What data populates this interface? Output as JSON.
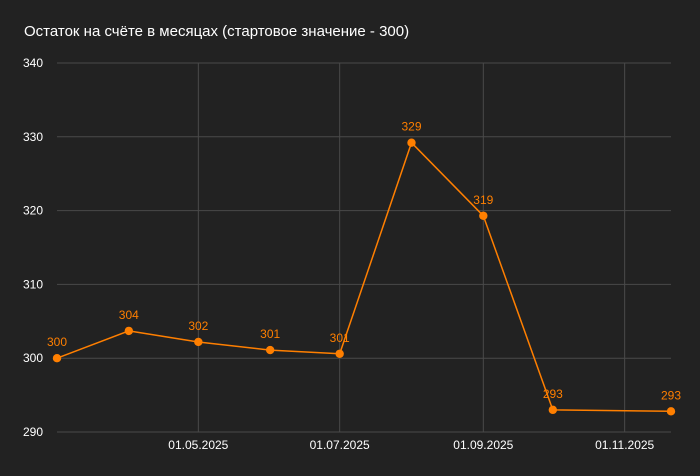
{
  "colors": {
    "background": "#222222",
    "grid": "#4a4a4a",
    "series": "#ff7f00",
    "text": "#ffffff"
  },
  "chart_data": {
    "type": "line",
    "title": "Остаток на счёте в месяцах (стартовое значение - 300)",
    "xlabel": "",
    "ylabel": "",
    "grid": true,
    "legend": "none",
    "xlim": [
      "2025-03-01",
      "2025-11-21"
    ],
    "ylim": [
      290,
      340
    ],
    "yticks": [
      290,
      300,
      310,
      320,
      330,
      340
    ],
    "ytick_labels": [
      "290",
      "300",
      "310",
      "320",
      "330",
      "340"
    ],
    "xticks": [
      "2025-05-01",
      "2025-07-01",
      "2025-09-01",
      "2025-11-01"
    ],
    "xtick_labels": [
      "01.05.2025",
      "01.07.2025",
      "01.09.2025",
      "01.11.2025"
    ],
    "series": [
      {
        "name": "",
        "x": [
          "2025-03-01",
          "2025-04-01",
          "2025-05-01",
          "2025-06-01",
          "2025-07-01",
          "2025-08-01",
          "2025-09-01",
          "2025-10-01",
          "2025-11-21"
        ],
        "y": [
          300,
          303.7,
          302.2,
          301.1,
          300.6,
          329.2,
          319.3,
          293,
          292.8
        ],
        "labels": [
          "300",
          "304",
          "302",
          "301",
          "301",
          "329",
          "319",
          "293",
          "293"
        ]
      }
    ]
  }
}
